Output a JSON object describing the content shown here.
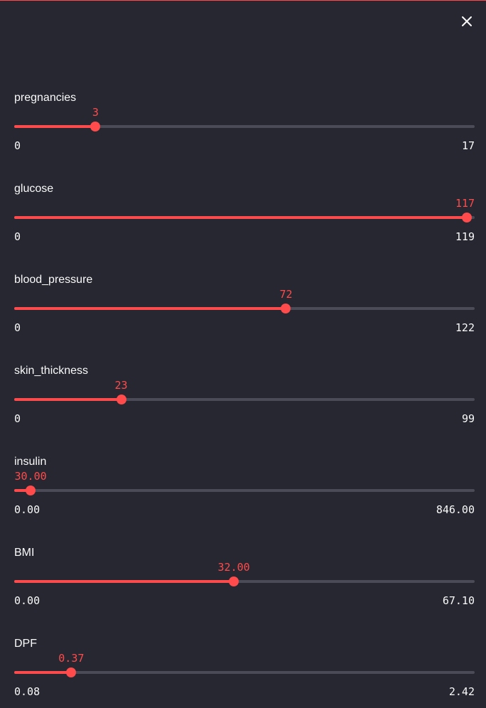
{
  "colors": {
    "background": "#262730",
    "accent": "#ff4b4b",
    "track": "#4a4b56",
    "text": "#fafafa"
  },
  "close_icon": "close-icon",
  "sliders": [
    {
      "label": "pregnancies",
      "value": "3",
      "min": "0",
      "max": "17",
      "fraction": 0.1765
    },
    {
      "label": "glucose",
      "value": "117",
      "min": "0",
      "max": "119",
      "fraction": 0.9832
    },
    {
      "label": "blood_pressure",
      "value": "72",
      "min": "0",
      "max": "122",
      "fraction": 0.5902
    },
    {
      "label": "skin_thickness",
      "value": "23",
      "min": "0",
      "max": "99",
      "fraction": 0.2323
    },
    {
      "label": "insulin",
      "value": "30.00",
      "min": "0.00",
      "max": "846.00",
      "fraction": 0.0355
    },
    {
      "label": "BMI",
      "value": "32.00",
      "min": "0.00",
      "max": "67.10",
      "fraction": 0.4769
    },
    {
      "label": "DPF",
      "value": "0.37",
      "min": "0.08",
      "max": "2.42",
      "fraction": 0.1239
    }
  ]
}
